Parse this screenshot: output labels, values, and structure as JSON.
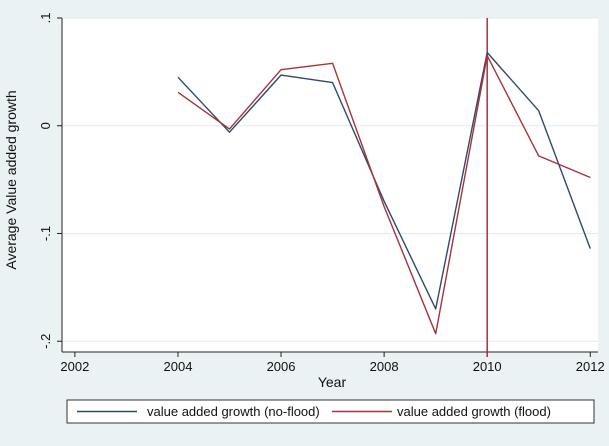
{
  "chart_data": {
    "type": "line",
    "title": "",
    "xlabel": "Year",
    "ylabel": "Average Value added growth",
    "xlim": [
      2002,
      2012
    ],
    "ylim": [
      -0.2,
      0.1
    ],
    "x_ticks": [
      2002,
      2004,
      2006,
      2008,
      2010,
      2012
    ],
    "x_tick_labels": [
      "2002",
      "2004",
      "2006",
      "2008",
      "2010",
      "2012"
    ],
    "y_ticks": [
      -0.2,
      -0.1,
      0,
      0.1
    ],
    "y_tick_labels": [
      "-.2",
      "-.1",
      "0",
      ".1"
    ],
    "grid": "horizontal",
    "reference_line": {
      "x": 2010,
      "color": "#a8323a"
    },
    "legend_position": "bottom",
    "series": [
      {
        "name": "value added growth (no-flood)",
        "color": "#2f4a6b",
        "x": [
          2004,
          2005,
          2006,
          2007,
          2008,
          2009,
          2010,
          2011,
          2012
        ],
        "y": [
          0.045,
          -0.006,
          0.047,
          0.04,
          -0.07,
          -0.17,
          0.068,
          0.014,
          -0.114
        ]
      },
      {
        "name": "value added growth (flood)",
        "color": "#a8323a",
        "x": [
          2004,
          2005,
          2006,
          2007,
          2008,
          2009,
          2010,
          2011,
          2012
        ],
        "y": [
          0.031,
          -0.003,
          0.052,
          0.058,
          -0.075,
          -0.193,
          0.065,
          -0.028,
          -0.048
        ]
      }
    ]
  }
}
